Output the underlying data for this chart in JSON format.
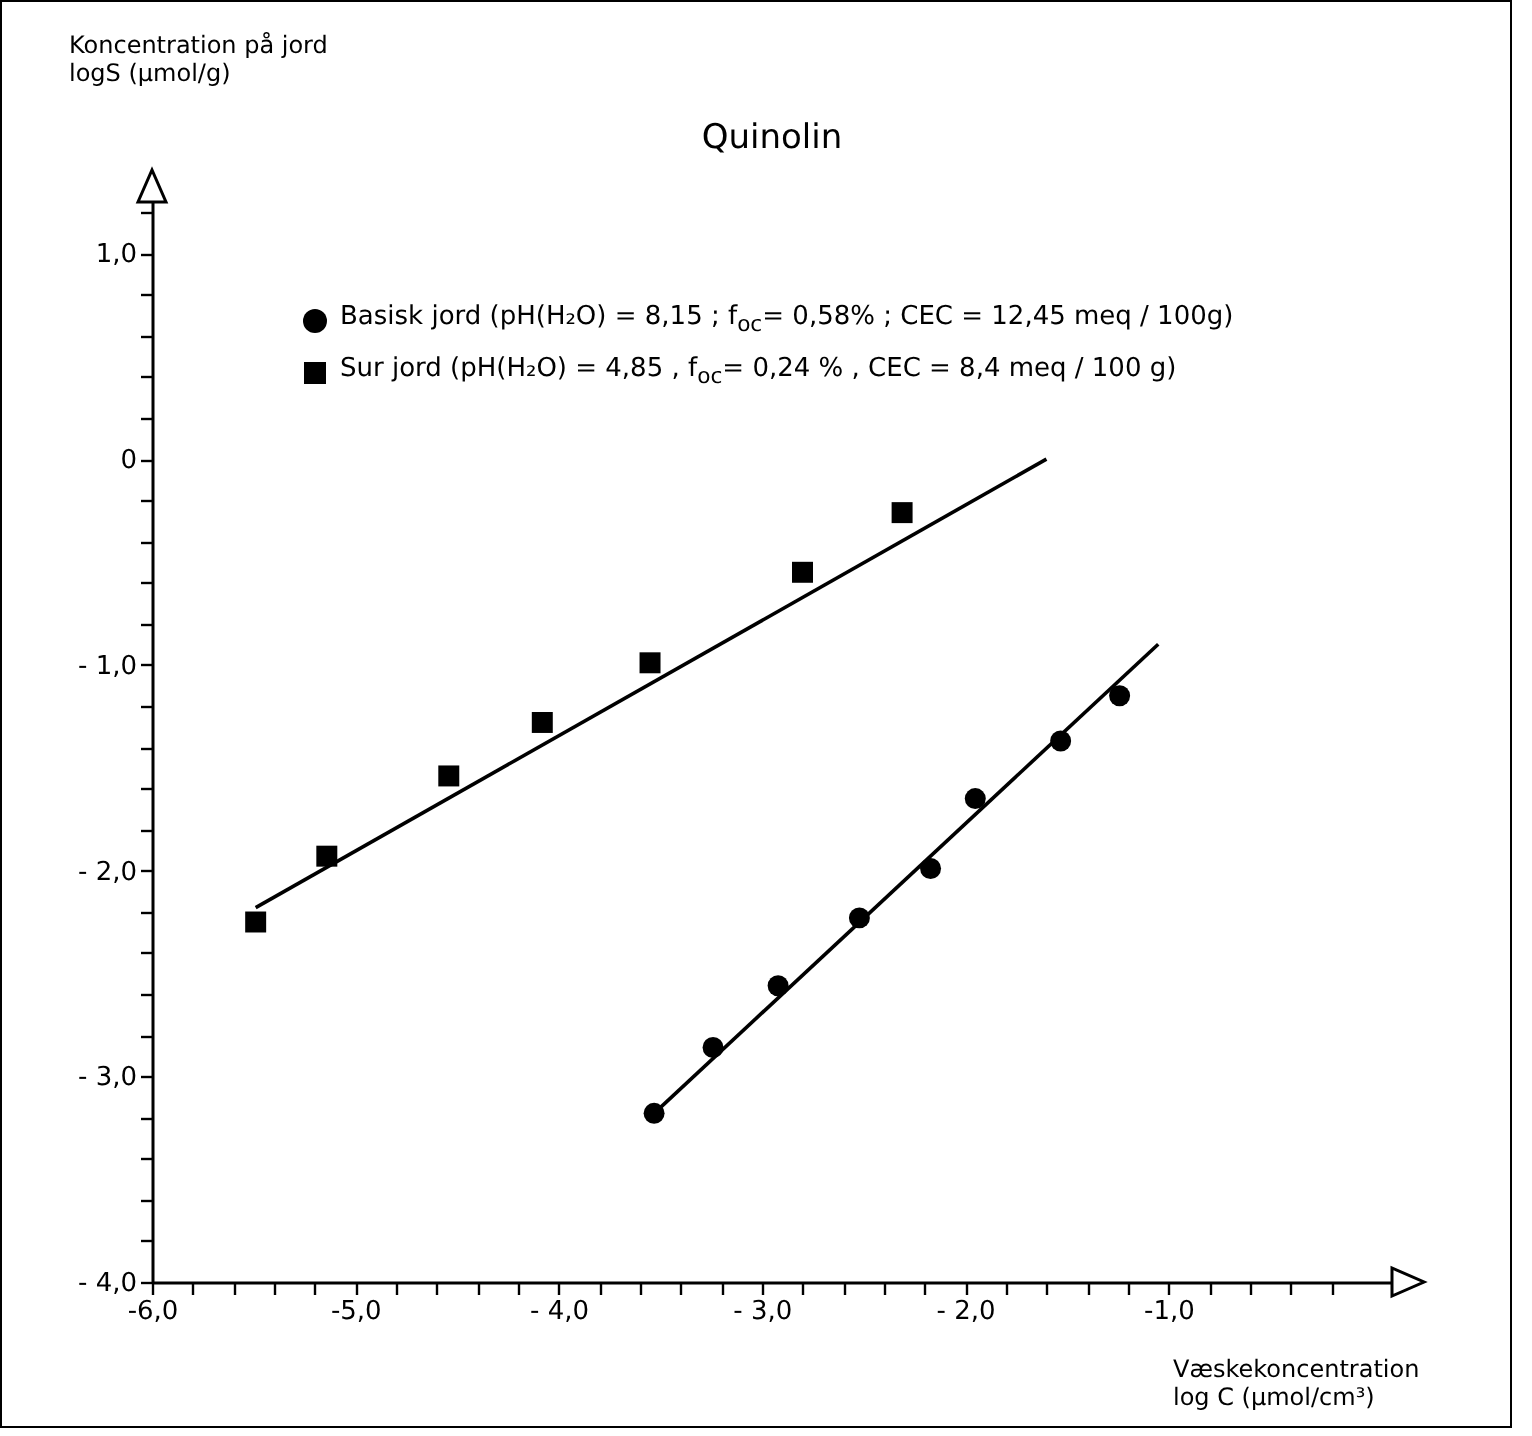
{
  "chart_data": {
    "type": "scatter",
    "title": "Quinolin",
    "xlabel": "Væskekoncentration\nlog C (µmol/cm³)",
    "ylabel": "Koncentration på jord\nlogS (µmol/g)",
    "xlim": [
      -6,
      0.1
    ],
    "ylim": [
      -4,
      1.25
    ],
    "xticks": [
      {
        "value": -6,
        "label": "-6,0"
      },
      {
        "value": -5.8,
        "label": null
      },
      {
        "value": -5.6,
        "label": null
      },
      {
        "value": -5.4,
        "label": null
      },
      {
        "value": -5.2,
        "label": null
      },
      {
        "value": -5,
        "label": "-5,0"
      },
      {
        "value": -4.8,
        "label": null
      },
      {
        "value": -4.6,
        "label": null
      },
      {
        "value": -4.4,
        "label": null
      },
      {
        "value": -4.2,
        "label": null
      },
      {
        "value": -4,
        "label": "- 4,0"
      },
      {
        "value": -3.8,
        "label": null
      },
      {
        "value": -3.6,
        "label": null
      },
      {
        "value": -3.4,
        "label": null
      },
      {
        "value": -3.2,
        "label": null
      },
      {
        "value": -3,
        "label": "- 3,0"
      },
      {
        "value": -2.8,
        "label": null
      },
      {
        "value": -2.6,
        "label": null
      },
      {
        "value": -2.4,
        "label": null
      },
      {
        "value": -2.2,
        "label": null
      },
      {
        "value": -2,
        "label": "- 2,0"
      },
      {
        "value": -1.8,
        "label": null
      },
      {
        "value": -1.6,
        "label": null
      },
      {
        "value": -1.4,
        "label": null
      },
      {
        "value": -1.2,
        "label": null
      },
      {
        "value": -1,
        "label": "-1,0"
      },
      {
        "value": -0.8,
        "label": null
      },
      {
        "value": -0.6,
        "label": null
      },
      {
        "value": -0.4,
        "label": null
      },
      {
        "value": -0.2,
        "label": null
      }
    ],
    "yticks": [
      {
        "value": -4,
        "label": "- 4,0"
      },
      {
        "value": -3.8,
        "label": null
      },
      {
        "value": -3.6,
        "label": null
      },
      {
        "value": -3.4,
        "label": null
      },
      {
        "value": -3.2,
        "label": null
      },
      {
        "value": -3,
        "label": "- 3,0"
      },
      {
        "value": -2.8,
        "label": null
      },
      {
        "value": -2.6,
        "label": null
      },
      {
        "value": -2.4,
        "label": null
      },
      {
        "value": -2.2,
        "label": null
      },
      {
        "value": -2,
        "label": "- 2,0"
      },
      {
        "value": -1.8,
        "label": null
      },
      {
        "value": -1.6,
        "label": null
      },
      {
        "value": -1.4,
        "label": null
      },
      {
        "value": -1.2,
        "label": null
      },
      {
        "value": -1,
        "label": "- 1,0"
      },
      {
        "value": -0.8,
        "label": null
      },
      {
        "value": -0.6,
        "label": null
      },
      {
        "value": -0.4,
        "label": null
      },
      {
        "value": -0.2,
        "label": null
      },
      {
        "value": 0,
        "label": "0"
      },
      {
        "value": 0.2,
        "label": null
      },
      {
        "value": 0.4,
        "label": null
      },
      {
        "value": 0.6,
        "label": null
      },
      {
        "value": 0.8,
        "label": null
      },
      {
        "value": 1,
        "label": "1,0"
      },
      {
        "value": 1.2,
        "label": null
      }
    ],
    "grid": false,
    "legend": "top left",
    "series": [
      {
        "name": "Basisk jord (pH(H₂O) = 8,15 ; f$_{oc}$= 0,58% ; CEC = 12,45 meq / 100g)",
        "color": "#000000",
        "marker": "circle",
        "x": [
          -3.53,
          -3.24,
          -2.92,
          -2.52,
          -2.17,
          -1.95,
          -1.53,
          -1.24
        ],
        "values": [
          -3.18,
          -2.86,
          -2.56,
          -2.23,
          -1.99,
          -1.65,
          -1.37,
          -1.15
        ]
      },
      {
        "name": "Sur jord (pH(H₂O) = 4,85 , f$_{oc}$= 0,24 % , CEC = 8,4 meq / 100 g)",
        "color": "#000000",
        "marker": "square",
        "x": [
          -5.49,
          -5.14,
          -4.54,
          -4.08,
          -3.55,
          -2.8,
          -2.31
        ],
        "values": [
          -2.25,
          -1.93,
          -1.54,
          -1.28,
          -0.99,
          -0.55,
          -0.26
        ]
      },
      {
        "type": "line",
        "color": "#000000",
        "x": [
          -3.53,
          -1.05
        ],
        "values": [
          -3.18,
          -0.9
        ]
      },
      {
        "type": "line",
        "color": "#000000",
        "x": [
          -5.49,
          -1.6
        ],
        "values": [
          -2.18,
          0
        ]
      }
    ]
  }
}
